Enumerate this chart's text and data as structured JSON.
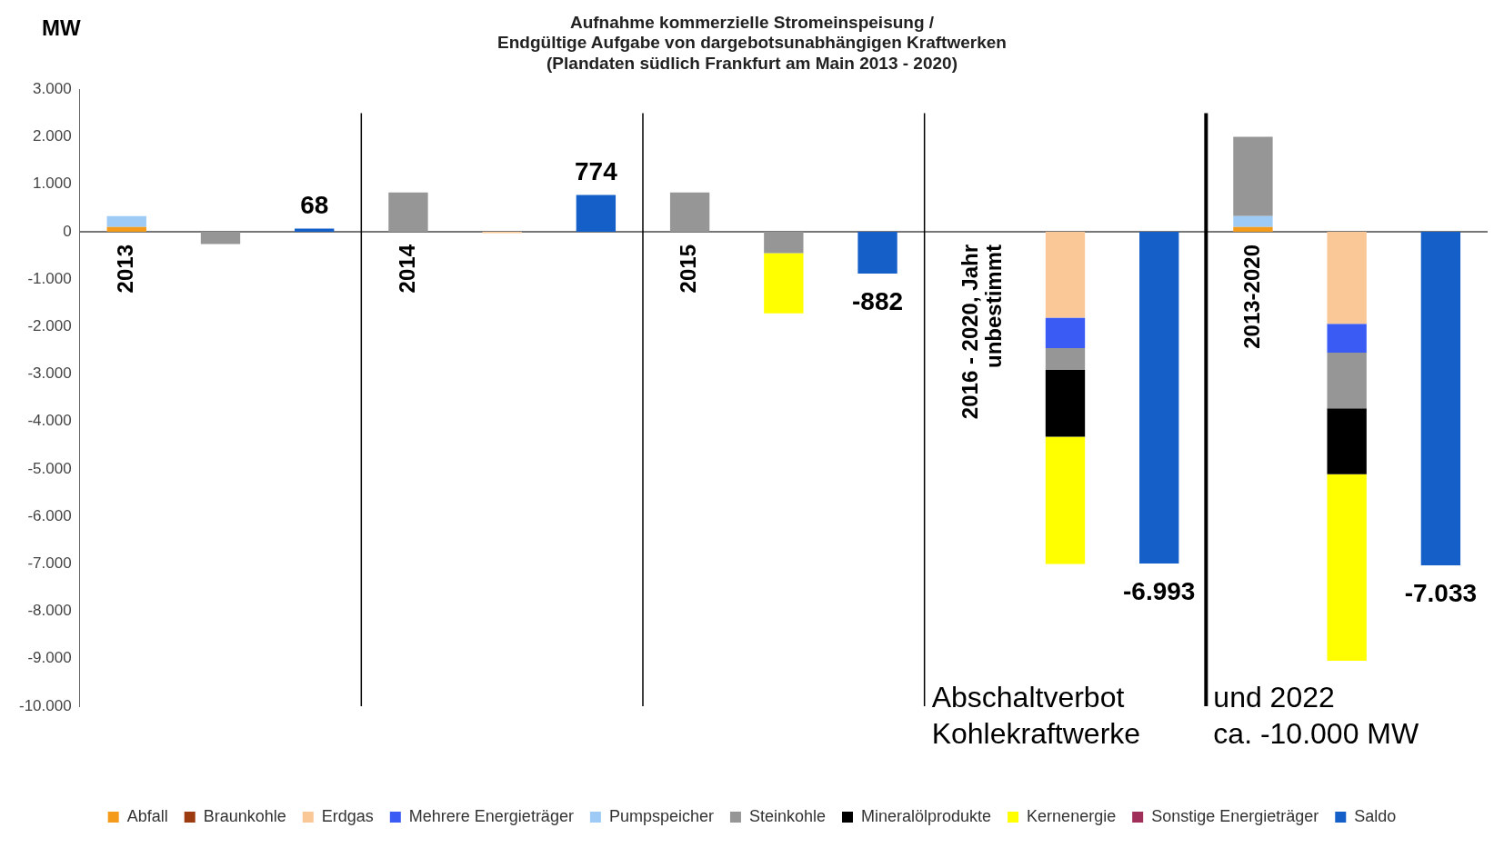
{
  "chart_data": {
    "type": "bar",
    "title": "Aufnahme kommerzielle Stromeinspeisung /\nEndgültige Aufgabe von dargebotsunabhängigen Kraftwerken\n(Plandaten südlich Frankfurt am Main 2013 - 2020)",
    "ylabel": "MW",
    "categories": [
      null,
      null,
      null,
      null,
      null,
      null,
      null,
      null,
      null,
      null,
      null,
      null,
      null,
      null,
      null
    ],
    "stacked": true,
    "series": [
      {
        "name": "Abfall",
        "color": "#f59b1c",
        "values": [
          100,
          null,
          null,
          null,
          null,
          null,
          null,
          null,
          null,
          null,
          null,
          null,
          100,
          null,
          null
        ]
      },
      {
        "name": "Braunkohle",
        "color": "#9c3a10",
        "values": [
          null,
          null,
          null,
          null,
          null,
          null,
          null,
          null,
          null,
          null,
          null,
          null,
          null,
          null,
          null
        ]
      },
      {
        "name": "Erdgas",
        "color": "#fac896",
        "values": [
          null,
          null,
          null,
          null,
          -30,
          null,
          null,
          null,
          null,
          null,
          -1810,
          null,
          null,
          -1940,
          null
        ]
      },
      {
        "name": "Mehrere Energieträger",
        "color": "#3a5cf5",
        "values": [
          null,
          null,
          null,
          null,
          null,
          null,
          null,
          null,
          null,
          null,
          -640,
          null,
          null,
          -610,
          null
        ]
      },
      {
        "name": "Pumpspeicher",
        "color": "#9ecbf5",
        "values": [
          230,
          null,
          null,
          null,
          null,
          null,
          null,
          null,
          null,
          null,
          null,
          null,
          230,
          null,
          null
        ]
      },
      {
        "name": "Steinkohle",
        "color": "#969696",
        "values": [
          null,
          -260,
          null,
          830,
          null,
          null,
          830,
          -450,
          null,
          null,
          -460,
          null,
          1670,
          -1170,
          null
        ]
      },
      {
        "name": "Mineralölprodukte",
        "color": "#000000",
        "values": [
          null,
          null,
          null,
          null,
          null,
          null,
          null,
          null,
          null,
          null,
          -1410,
          null,
          null,
          -1390,
          null
        ]
      },
      {
        "name": "Kernenergie",
        "color": "#ffff00",
        "values": [
          null,
          null,
          null,
          null,
          null,
          null,
          null,
          -1270,
          null,
          null,
          -2680,
          null,
          null,
          -3930,
          null
        ]
      },
      {
        "name": "Sonstige Energieträger",
        "color": "#a0305a",
        "values": [
          null,
          null,
          null,
          null,
          null,
          null,
          null,
          null,
          null,
          null,
          null,
          null,
          null,
          null,
          null
        ]
      },
      {
        "name": "Saldo",
        "color": "#1560c8",
        "values": [
          null,
          null,
          68,
          null,
          null,
          774,
          null,
          null,
          -882,
          null,
          null,
          -6993,
          null,
          null,
          -7033
        ],
        "value_labels": [
          null,
          null,
          "68",
          null,
          null,
          "774",
          null,
          null,
          "-882",
          null,
          null,
          "-6.993",
          null,
          null,
          "-7.033"
        ]
      }
    ],
    "ylim": [
      -10000,
      3000
    ],
    "yticks": [
      {
        "value": -10000,
        "label": "-10.000"
      },
      {
        "value": -9000,
        "label": "-9.000"
      },
      {
        "value": -8000,
        "label": "-8.000"
      },
      {
        "value": -7000,
        "label": "-7.000"
      },
      {
        "value": -6000,
        "label": "-6.000"
      },
      {
        "value": -5000,
        "label": "-5.000"
      },
      {
        "value": -4000,
        "label": "-4.000"
      },
      {
        "value": -3000,
        "label": "-3.000"
      },
      {
        "value": -2000,
        "label": "-2.000"
      },
      {
        "value": -1000,
        "label": "-1.000"
      },
      0,
      {
        "value": 1000,
        "label": "1.000"
      },
      {
        "value": 2000,
        "label": "2.000"
      },
      {
        "value": 3000,
        "label": "3.000"
      }
    ],
    "annotations": [
      "2013",
      "2014",
      "2015",
      "2016 - 2020, Jahr\nunbestimmt",
      "2013-2020",
      "Abschaltverbot\nKohlekraftwerke",
      "und 2022\nca. -10.000 MW"
    ],
    "grid": false,
    "legend": "bottom"
  }
}
